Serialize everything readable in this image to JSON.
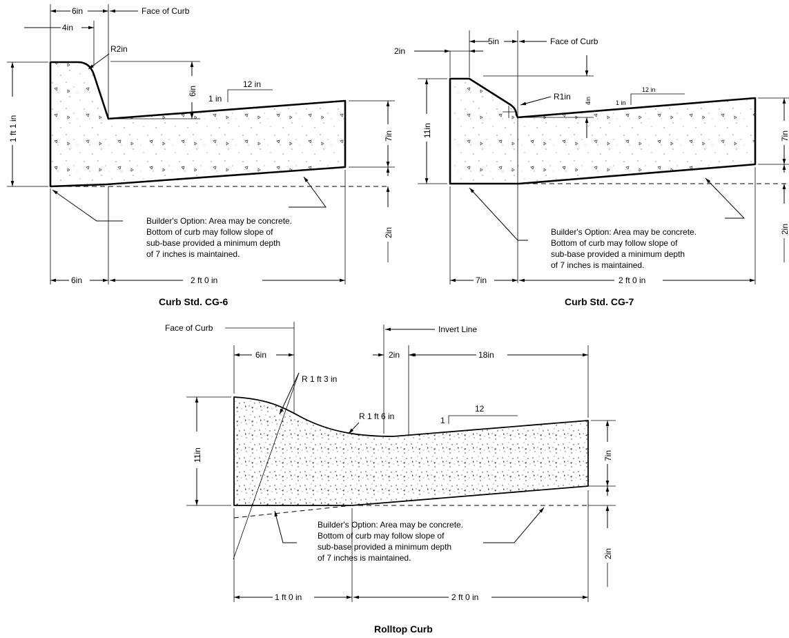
{
  "cg6": {
    "title": "Curb Std. CG-6",
    "face_of_curb": "Face of Curb",
    "dim_top_6in": "6in",
    "dim_top_4in": "4in",
    "radius": "R2in",
    "dim_6in_vertical": "6in",
    "slope_rise": "1 in",
    "slope_run": "12 in",
    "height_total": "1 ft 1 in",
    "height_right": "7in",
    "subbase": "2in",
    "bottom_left": "6in",
    "bottom_right": "2 ft 0 in",
    "note": [
      "Builder's Option: Area may be concrete.",
      "Bottom of curb may follow slope of",
      "sub-base provided a minimum depth",
      "of 7 inches is maintained."
    ]
  },
  "cg7": {
    "title": "Curb Std. CG-7",
    "face_of_curb": "Face of Curb",
    "dim_top_5in": "5in",
    "dim_left_2in": "2in",
    "radius": "R1in",
    "dim_4in_vertical": "4in",
    "slope_rise": "1 in",
    "slope_run": "12 in",
    "height_total": "11in",
    "height_right": "7in",
    "subbase": "2in",
    "bottom_left": "7in",
    "bottom_right": "2 ft 0 in",
    "note": [
      "Builder's Option: Area may be concrete.",
      "Bottom of curb may follow slope of",
      "sub-base provided a minimum depth",
      "of 7 inches is maintained."
    ]
  },
  "rolltop": {
    "title": "Rolltop Curb",
    "face_of_curb": "Face of Curb",
    "invert_line": "Invert Line",
    "dim_6in": "6in",
    "dim_2in": "2in",
    "dim_18in": "18in",
    "radius_1": "R 1 ft 3 in",
    "radius_2": "R 1 ft 6 in",
    "slope_rise": "1",
    "slope_run": "12",
    "height_total": "11in",
    "height_right": "7in",
    "subbase": "2in",
    "bottom_left": "1 ft 0 in",
    "bottom_right": "2 ft 0 in",
    "note": [
      "Builder's Option: Area may be concrete.",
      "Bottom of curb may follow slope of",
      "sub-base provided a minimum depth",
      "of 7 inches is maintained."
    ]
  }
}
